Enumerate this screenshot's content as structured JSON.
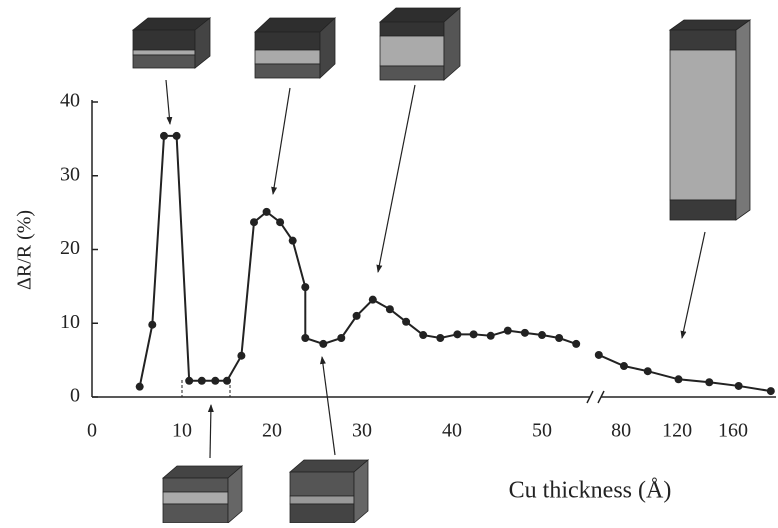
{
  "chart_data": {
    "type": "line",
    "ylabel": "ΔR/R (%)",
    "xlabel": "Cu thickness (Å)",
    "ylim": [
      0,
      40
    ],
    "yticks": [
      0,
      10,
      20,
      30,
      40
    ],
    "xlim": [
      0,
      56
    ],
    "xticks": [
      0,
      10,
      20,
      30,
      40,
      50
    ],
    "x2lim": [
      62,
      190
    ],
    "x2ticks": [
      80,
      120,
      160
    ],
    "color": "#222222",
    "series": [
      {
        "x": [
          5.3,
          6.7,
          8,
          9.4,
          10.8,
          12.2,
          13.7,
          15,
          16.6,
          18,
          19.4,
          20.9,
          22.3,
          23.7,
          23.7,
          25.7,
          27.7,
          29.4,
          31.2,
          33.1,
          34.9,
          36.8,
          38.7,
          40.6,
          42.4,
          44.3,
          46.2,
          48.1,
          50,
          51.9,
          53.8
        ],
        "values": [
          1.4,
          9.8,
          35.4,
          35.4,
          2.2,
          2.2,
          2.2,
          2.2,
          5.6,
          23.7,
          25.1,
          23.7,
          21.2,
          14.9,
          8,
          7.2,
          8,
          11,
          13.2,
          11.9,
          10.2,
          8.4,
          8,
          8.5,
          8.5,
          8.3,
          9,
          8.7,
          8.4,
          8,
          7.2
        ]
      },
      {
        "axis": "x2",
        "x": [
          64,
          82,
          99,
          121,
          143,
          164,
          187
        ],
        "values": [
          5.7,
          4.2,
          3.5,
          2.4,
          2,
          1.5,
          0.8
        ]
      }
    ]
  }
}
